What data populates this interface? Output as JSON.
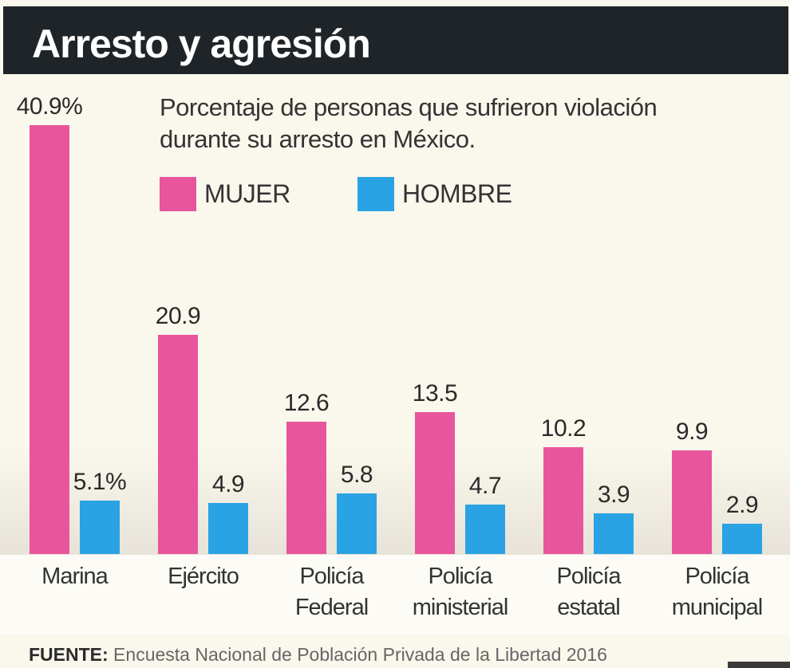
{
  "header": {
    "title": "Arresto y agresión"
  },
  "subtitle_lines": [
    "Porcentaje de personas que sufrieron violación",
    "durante su arresto en México."
  ],
  "colors": {
    "mujer": "#e8559c",
    "hombre": "#29a3e3",
    "title_bg": "#1f2428",
    "background": "#faf7ed"
  },
  "source": {
    "label": "FUENTE:",
    "text": " Encuesta Nacional de Población Privada de la Libertad 2016"
  },
  "chart_data": {
    "type": "bar",
    "title": "Arresto y agresión",
    "subtitle": "Porcentaje de personas que sufrieron violación durante su arresto en México.",
    "xlabel": "",
    "ylabel": "",
    "unit": "%",
    "ylim": [
      0,
      40.9
    ],
    "grid": false,
    "legend_position": "top",
    "categories": [
      "Marina",
      "Ejército",
      "Policía Federal",
      "Policía ministerial",
      "Policía estatal",
      "Policía municipal"
    ],
    "category_lines": [
      [
        "Marina"
      ],
      [
        "Ejército"
      ],
      [
        "Policía",
        "Federal"
      ],
      [
        "Policía",
        "ministerial"
      ],
      [
        "Policía",
        "estatal"
      ],
      [
        "Policía",
        "municipal"
      ]
    ],
    "series": [
      {
        "name": "MUJER",
        "values": [
          40.9,
          20.9,
          12.6,
          13.5,
          10.2,
          9.9
        ],
        "labels": [
          "40.9%",
          "20.9",
          "12.6",
          "13.5",
          "10.2",
          "9.9"
        ]
      },
      {
        "name": "HOMBRE",
        "values": [
          5.1,
          4.9,
          5.8,
          4.7,
          3.9,
          2.9
        ],
        "labels": [
          "5.1%",
          "4.9",
          "5.8",
          "4.7",
          "3.9",
          "2.9"
        ]
      }
    ]
  }
}
